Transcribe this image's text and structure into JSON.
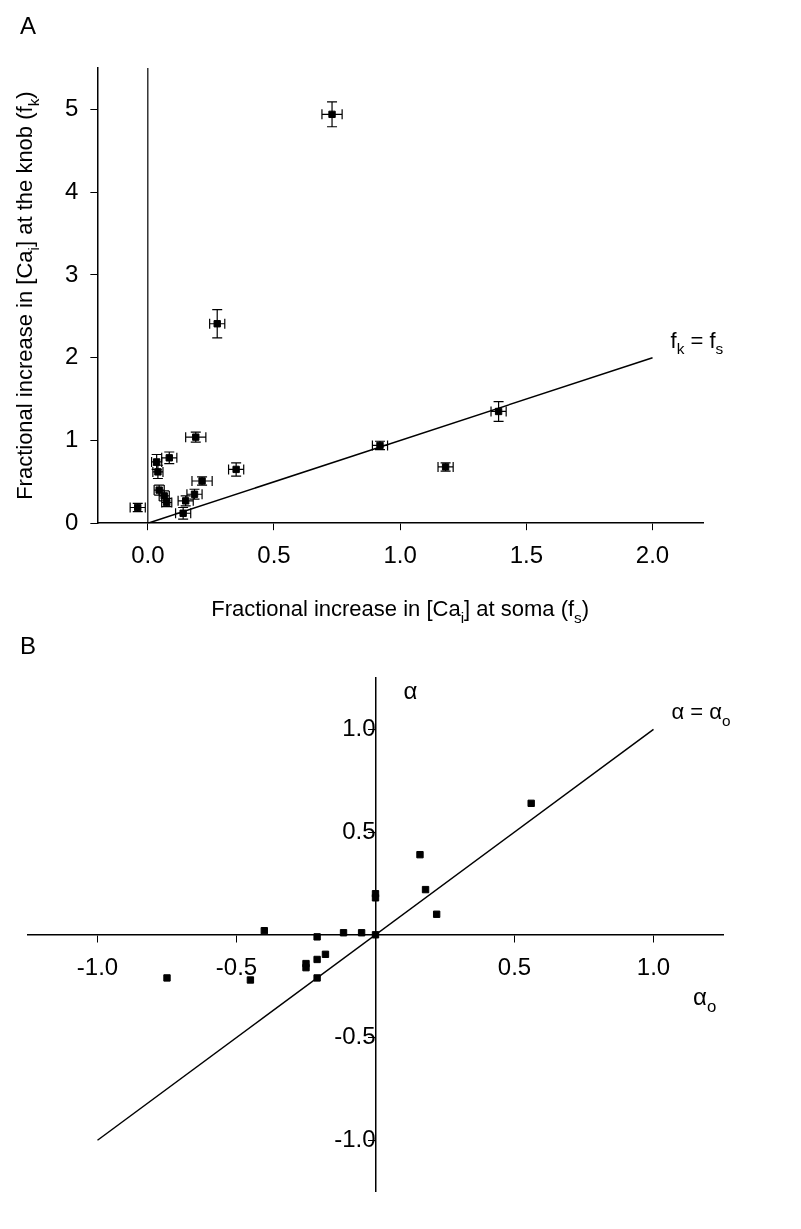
{
  "chart_data": [
    {
      "type": "scatter",
      "title": "A",
      "xlabel": "Fractional increase in [Ca$_{i}$] at soma (f$_{s}$)",
      "ylabel": "Fractional increase in [Ca$_{i}$] at the knob (f$_{k}$)",
      "xlim": [
        -0.2,
        2.2
      ],
      "ylim": [
        0,
        5.5
      ],
      "xticks": [
        {
          "value": 0,
          "label": "0.0"
        },
        {
          "value": 0.5,
          "label": "0.5"
        },
        {
          "value": 1,
          "label": "1.0"
        },
        {
          "value": 1.5,
          "label": "1.5"
        },
        {
          "value": 2,
          "label": "2.0"
        }
      ],
      "yticks": [
        0,
        1,
        2,
        3,
        4,
        5
      ],
      "grid": false,
      "legend": false,
      "ref_lines": [
        {
          "axis": "x",
          "value": 0,
          "color": "#000000"
        }
      ],
      "series": [
        {
          "marker": "square",
          "color": "#000000",
          "x": [
            0.73,
            0.275,
            0.19,
            1.39,
            0.92,
            1.18,
            0.35,
            0.215,
            0.185,
            0.15,
            0.14,
            -0.04,
            0.085,
            0.035,
            0.04,
            0.045,
            0.065,
            0.075
          ],
          "values": [
            4.94,
            2.41,
            1.04,
            1.35,
            0.94,
            0.68,
            0.65,
            0.51,
            0.35,
            0.27,
            0.12,
            0.19,
            0.79,
            0.74,
            0.62,
            0.4,
            0.33,
            0.25
          ],
          "errors": [
            0.15,
            0.17,
            0.06,
            0.12,
            0.05,
            0.05,
            0.08,
            0.05,
            0.06,
            0.06,
            0.07,
            0.05,
            0.07,
            0.09,
            0.08,
            0.06,
            0.06,
            0.05
          ],
          "xerrors": [
            0.04,
            0.03,
            0.04,
            0.03,
            0.03,
            0.03,
            0.03,
            0.04,
            0.03,
            0.03,
            0.03,
            0.03,
            0.03,
            0.02,
            0.02,
            0.02,
            0.02,
            0.02
          ]
        },
        {
          "type": "line",
          "name": "f$_{k}$ = f$_{s}$",
          "color": "#000000",
          "x": [
            0,
            2
          ],
          "values": [
            0,
            2
          ],
          "line_style": "solid",
          "marker": "none"
        }
      ]
    },
    {
      "type": "scatter",
      "title": "B",
      "xlabel": "α$_{o}$",
      "ylabel": "α",
      "xlim": [
        -1.25,
        1.25
      ],
      "ylim": [
        -1.25,
        1.25
      ],
      "xticks": [
        {
          "value": -1,
          "label": "-1.0"
        },
        {
          "value": -0.5,
          "label": "-0.5"
        },
        {
          "value": 0.5,
          "label": "0.5"
        },
        {
          "value": 1,
          "label": "1.0"
        }
      ],
      "yticks": [
        {
          "value": -1,
          "label": "-1.0"
        },
        {
          "value": -0.5,
          "label": "-0.5"
        },
        {
          "value": 0.5,
          "label": "0.5"
        },
        {
          "value": 1,
          "label": "1.0"
        }
      ],
      "grid": false,
      "legend": false,
      "series": [
        {
          "marker": "square",
          "color": "#000000",
          "x": [
            -0.75,
            -0.45,
            -0.4,
            -0.25,
            -0.25,
            -0.21,
            -0.21,
            -0.21,
            -0.18,
            -0.115,
            -0.05,
            0.0,
            0.0,
            0.0,
            0.16,
            0.18,
            0.22,
            0.56
          ],
          "values": [
            -0.21,
            -0.22,
            0.02,
            -0.16,
            -0.14,
            -0.01,
            -0.12,
            -0.21,
            -0.095,
            0.01,
            0.01,
            0.0,
            0.2,
            0.18,
            0.39,
            0.22,
            0.1,
            0.64
          ]
        },
        {
          "type": "line",
          "name": "α = α$_{o}$",
          "color": "#000000",
          "x": [
            -1,
            1
          ],
          "values": [
            -1,
            1
          ],
          "line_style": "solid",
          "marker": "none"
        }
      ]
    }
  ]
}
